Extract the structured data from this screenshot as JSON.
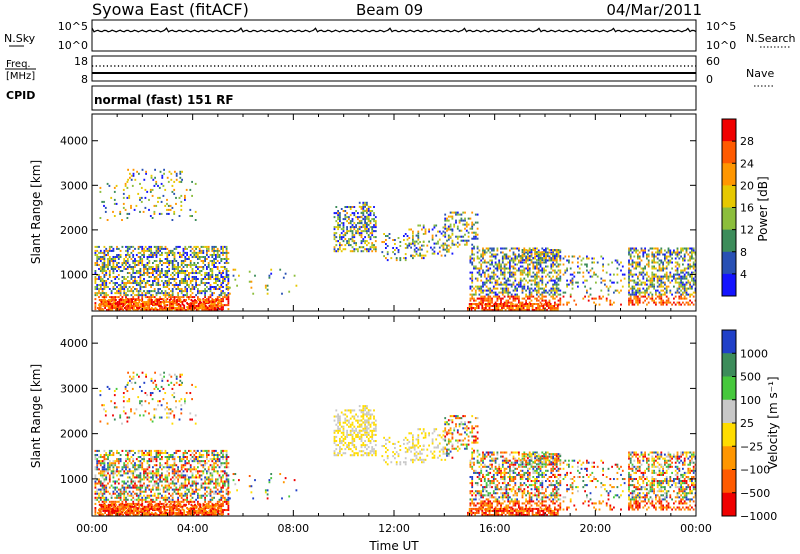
{
  "header": {
    "station": "Syowa East (fitACF)",
    "beam": "Beam 09",
    "date": "04/Mar/2011"
  },
  "status_panels": {
    "nsky_label": "N.Sky",
    "nsky_ticks": [
      "10^5",
      "10^0"
    ],
    "nsearch_label": "N.Search",
    "nsearch_ticks": [
      "10^5",
      "10^0"
    ],
    "freq_label_line1": "Freq.",
    "freq_label_line2": "[MHz]",
    "freq_ticks": [
      "18",
      "8"
    ],
    "nave_label": "Nave",
    "nave_ticks": [
      "60",
      "0"
    ],
    "cpid_label": "CPID",
    "cpid_value": "normal (fast) 151 RF"
  },
  "chart_data": [
    {
      "type": "heatmap",
      "title": "",
      "ylabel": "Slant Range [km]",
      "xlabel": "",
      "y_ticks": [
        "1000",
        "2000",
        "3000",
        "4000"
      ],
      "ylim": [
        180,
        4600
      ],
      "colorbar_label": "Power [dB]",
      "colorbar_ticks": [
        "28",
        "24",
        "20",
        "16",
        "12",
        "8",
        "4"
      ],
      "colorbar_colors": [
        "#f00000",
        "#ff5a00",
        "#ff9600",
        "#e6c800",
        "#8cbe3c",
        "#3c8c5a",
        "#2850b4",
        "#1414ff"
      ]
    },
    {
      "type": "heatmap",
      "title": "",
      "ylabel": "Slant Range [km]",
      "xlabel": "Time UT",
      "x_ticks": [
        "00:00",
        "04:00",
        "08:00",
        "12:00",
        "16:00",
        "20:00",
        "00:00"
      ],
      "y_ticks": [
        "1000",
        "2000",
        "3000",
        "4000"
      ],
      "ylim": [
        180,
        4600
      ],
      "colorbar_label": "Velocity [m s⁻¹]",
      "colorbar_ticks": [
        "1000",
        "500",
        "100",
        "25",
        "−25",
        "−100",
        "−500",
        "−1000"
      ],
      "colorbar_colors": [
        "#2040c8",
        "#3c8c5a",
        "#46c83c",
        "#c8c8c8",
        "#ffdc00",
        "#ff9600",
        "#ff5a00",
        "#f00000"
      ]
    }
  ]
}
